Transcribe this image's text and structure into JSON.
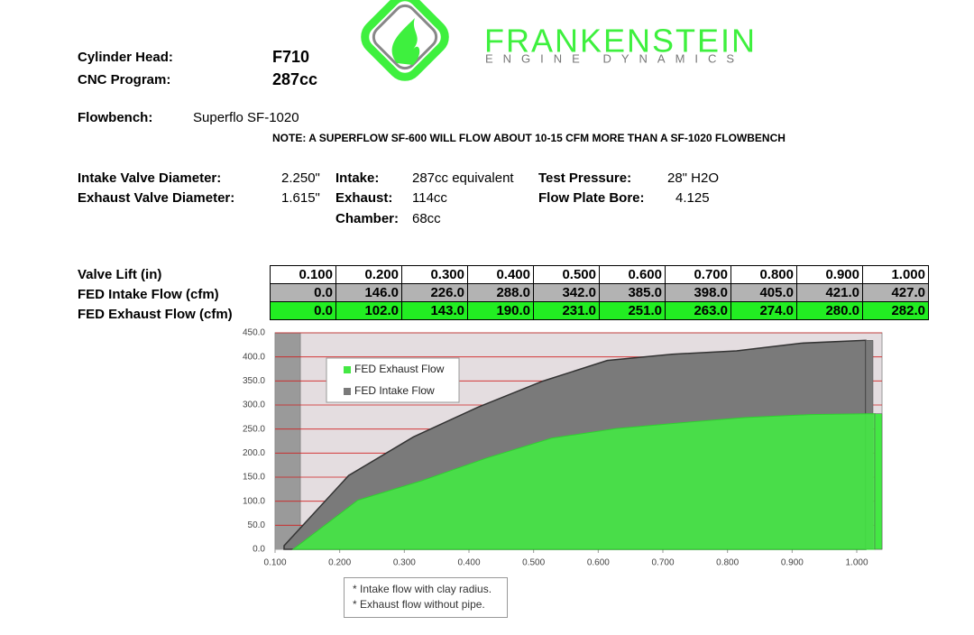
{
  "header": {
    "brand": "FRANKENSTEIN",
    "tagline": "ENGINE DYNAMICS"
  },
  "specs": {
    "cylinder_head_label": "Cylinder Head:",
    "cylinder_head": "F710",
    "cnc_label": "CNC Program:",
    "cnc": "287cc",
    "flowbench_label": "Flowbench:",
    "flowbench": "Superflo SF-1020",
    "note": "NOTE: A SUPERFLOW SF-600 WILL FLOW ABOUT 10-15 CFM MORE THAN A SF-1020 FLOWBENCH"
  },
  "details": {
    "intake_valve_label": "Intake Valve Diameter:",
    "intake_valve": "2.250\"",
    "exhaust_valve_label": "Exhaust Valve Diameter:",
    "exhaust_valve": "1.615\"",
    "intake_label": "Intake:",
    "intake": "287cc equivalent",
    "exhaust_label": "Exhaust:",
    "exhaust": "114cc",
    "chamber_label": "Chamber:",
    "chamber": "68cc",
    "pressure_label": "Test Pressure:",
    "pressure": "28\" H2O",
    "bore_label": "Flow Plate Bore:",
    "bore": "4.125"
  },
  "table": {
    "rows": [
      [
        "Valve Lift (in)",
        "0.100",
        "0.200",
        "0.300",
        "0.400",
        "0.500",
        "0.600",
        "0.700",
        "0.800",
        "0.900",
        "1.000"
      ],
      [
        "FED Intake Flow (cfm)",
        "0.0",
        "146.0",
        "226.0",
        "288.0",
        "342.0",
        "385.0",
        "398.0",
        "405.0",
        "421.0",
        "427.0"
      ],
      [
        "FED Exhaust Flow (cfm)",
        "0.0",
        "102.0",
        "143.0",
        "190.0",
        "231.0",
        "251.0",
        "263.0",
        "274.0",
        "280.0",
        "282.0"
      ]
    ]
  },
  "chart_data": {
    "type": "area",
    "x": [
      0.1,
      0.2,
      0.3,
      0.4,
      0.5,
      0.6,
      0.7,
      0.8,
      0.9,
      1.0
    ],
    "series": [
      {
        "name": "FED Intake Flow",
        "color": "#7a7a7a",
        "values": [
          0,
          146,
          226,
          288,
          342,
          385,
          398,
          405,
          421,
          427
        ]
      },
      {
        "name": "FED Exhaust Flow",
        "color": "#44e844",
        "values": [
          0,
          102,
          143,
          190,
          231,
          251,
          263,
          274,
          280,
          282
        ]
      }
    ],
    "xlim": [
      0.1,
      1.0
    ],
    "xticks": [
      {
        "value": 0.1,
        "label": "0.100"
      },
      {
        "value": 0.2,
        "label": "0.200"
      },
      {
        "value": 0.3,
        "label": "0.300"
      },
      {
        "value": 0.4,
        "label": "0.400"
      },
      {
        "value": 0.5,
        "label": "0.500"
      },
      {
        "value": 0.6,
        "label": "0.600"
      },
      {
        "value": 0.7,
        "label": "0.700"
      },
      {
        "value": 0.8,
        "label": "0.800"
      },
      {
        "value": 0.9,
        "label": "0.900"
      },
      {
        "value": 1.0,
        "label": "1.000"
      }
    ],
    "ylim": [
      0,
      450
    ],
    "yticks": [
      {
        "value": 0,
        "label": "0.0"
      },
      {
        "value": 50,
        "label": "50.0"
      },
      {
        "value": 100,
        "label": "100.0"
      },
      {
        "value": 150,
        "label": "150.0"
      },
      {
        "value": 200,
        "label": "200.0"
      },
      {
        "value": 250,
        "label": "250.0"
      },
      {
        "value": 300,
        "label": "300.0"
      },
      {
        "value": 350,
        "label": "350.0"
      },
      {
        "value": 400,
        "label": "400.0"
      },
      {
        "value": 450,
        "label": "450.0"
      }
    ],
    "grid": true
  },
  "footnotes": [
    "* Intake flow with clay radius.",
    "* Exhaust flow without pipe."
  ]
}
